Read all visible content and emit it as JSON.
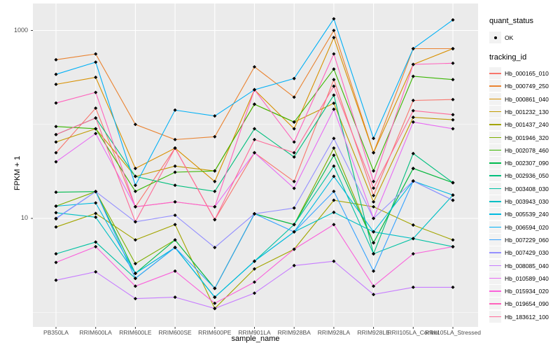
{
  "colors": {
    "panel_bg": "#EBEBEB",
    "grid": "#FFFFFF",
    "key_bg": "#F2F2F2",
    "tick_text": "#4D4D4D",
    "point": "#000000"
  },
  "legend": {
    "quant_status_title": "quant_status",
    "quant_status_items": [
      {
        "label": "OK",
        "symbol": "point"
      }
    ],
    "tracking_id_title": "tracking_id"
  },
  "chart_data": {
    "type": "line",
    "title": "",
    "xlabel": "sample_name",
    "ylabel": "FPKM + 1",
    "y_scale": "log10",
    "y_ticks": [
      "1000",
      "10"
    ],
    "y_tick_values": [
      1000,
      10
    ],
    "y_minor_values": [
      100,
      1
    ],
    "ylim": [
      0.7,
      1900
    ],
    "grid": true,
    "legend_position": "right",
    "point_shape": "filled-black",
    "categories": [
      "PB350LA",
      "RRIM600LA",
      "RRIM600LE",
      "RRIM600SE",
      "RRIM600PE",
      "RRIM901LA",
      "RRIM928BA",
      "RRIM928LA",
      "RRIM928LE",
      "RRII105LA_Control",
      "RRII105LA_Stressed"
    ],
    "series": [
      {
        "name": "Hb_000165_010",
        "color": "#F8766D",
        "values": [
          50,
          149,
          13.3,
          56,
          9.7,
          50,
          24.7,
          300,
          17.5,
          180,
          184
        ]
      },
      {
        "name": "Hb_000749_250",
        "color": "#EA8331",
        "values": [
          488,
          562,
          100,
          69,
          74,
          410,
          195,
          1000,
          50,
          640,
          640
        ]
      },
      {
        "name": "Hb_000861_040",
        "color": "#D89000",
        "values": [
          267,
          317,
          34,
          56,
          24.7,
          234,
          90,
          840,
          50,
          435,
          640
        ]
      },
      {
        "name": "Hb_001232_130",
        "color": "#C09B00",
        "values": [
          65,
          90,
          28,
          36,
          32,
          164,
          106,
          168,
          15,
          119,
          112
        ]
      },
      {
        "name": "Hb_001437_240",
        "color": "#A3A500",
        "values": [
          8.1,
          11.3,
          5.9,
          8.6,
          1.1,
          2.9,
          4.7,
          15.6,
          13.3,
          8.5,
          5.9
        ]
      },
      {
        "name": "Hb_001946_320",
        "color": "#7CAE00",
        "values": [
          13.5,
          19.3,
          3.3,
          5.9,
          1.8,
          11.2,
          8.6,
          56,
          5.5,
          34,
          24
        ]
      },
      {
        "name": "Hb_002078_460",
        "color": "#39B600",
        "values": [
          95,
          90,
          19.4,
          31,
          32,
          164,
          106,
          388,
          32,
          325,
          300
        ]
      },
      {
        "name": "Hb_002307_090",
        "color": "#00BB4E",
        "values": [
          19,
          19.3,
          2.6,
          5.9,
          1.8,
          11.2,
          8.6,
          47,
          5.5,
          34,
          24
        ]
      },
      {
        "name": "Hb_002936_050",
        "color": "#00BF7D",
        "values": [
          78,
          117,
          28,
          22.5,
          19.4,
          90,
          45,
          205,
          4.2,
          49,
          24
        ]
      },
      {
        "name": "Hb_003408_030",
        "color": "#00C1A3",
        "values": [
          4.2,
          5.6,
          2.3,
          4.9,
          1.45,
          3.5,
          8.6,
          36,
          4.2,
          6.1,
          5
        ]
      },
      {
        "name": "Hb_003943_030",
        "color": "#00BFC4",
        "values": [
          11.5,
          10.3,
          2.6,
          4.9,
          1.45,
          3.5,
          7.2,
          11.6,
          7.2,
          6.1,
          17.7
        ]
      },
      {
        "name": "Hb_005539_240",
        "color": "#00BAE0",
        "values": [
          13.5,
          14.6,
          2.6,
          4.9,
          1.45,
          3.5,
          7.2,
          28,
          7.2,
          25,
          17.7
        ]
      },
      {
        "name": "Hb_006594_020",
        "color": "#00B0F6",
        "values": [
          341,
          460,
          22.5,
          142,
          123,
          234,
          308,
          1330,
          71,
          640,
          1295
        ]
      },
      {
        "name": "Hb_007229_060",
        "color": "#35A2FF",
        "values": [
          10,
          19.3,
          2.3,
          4.9,
          1.8,
          11.2,
          7.2,
          19.4,
          2.75,
          25,
          15.6
        ]
      },
      {
        "name": "Hb_007429_030",
        "color": "#9590FF",
        "values": [
          9.9,
          19.3,
          9.2,
          10.8,
          4.9,
          11.2,
          12.9,
          71,
          10,
          25,
          15.6
        ]
      },
      {
        "name": "Hb_008085_040",
        "color": "#C77CFF",
        "values": [
          2.2,
          2.7,
          1.4,
          1.45,
          1.1,
          1.6,
          3.15,
          3.5,
          1.55,
          1.85,
          1.85
        ]
      },
      {
        "name": "Hb_010589_040",
        "color": "#E76BF3",
        "values": [
          40,
          80,
          13.3,
          15,
          13.3,
          50,
          20.9,
          145,
          10,
          106,
          90
        ]
      },
      {
        "name": "Hb_015934_020",
        "color": "#FA62DB",
        "values": [
          3.4,
          5,
          1.9,
          2.75,
          1.25,
          2.1,
          4.7,
          8.6,
          1.9,
          4.2,
          5
        ]
      },
      {
        "name": "Hb_019654_090",
        "color": "#FF62BC",
        "values": [
          169,
          219,
          13.3,
          15,
          13.3,
          234,
          65,
          563,
          24.7,
          435,
          448
        ]
      },
      {
        "name": "Hb_183612_100",
        "color": "#FF6A98",
        "values": [
          78,
          117,
          9.2,
          56,
          9.7,
          69,
          50,
          255,
          21,
          140,
          127
        ]
      }
    ]
  }
}
